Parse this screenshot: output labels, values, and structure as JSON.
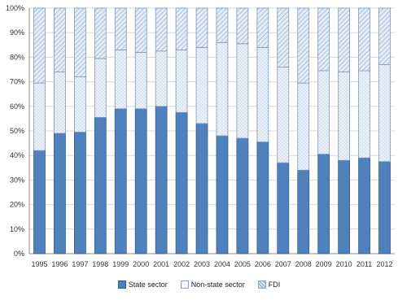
{
  "chart_data": {
    "type": "bar",
    "stacked": true,
    "percent_stacked": true,
    "title": "",
    "xlabel": "",
    "ylabel": "",
    "ylim": [
      0,
      100
    ],
    "ytick_labels": [
      "0%",
      "10%",
      "20%",
      "30%",
      "40%",
      "50%",
      "60%",
      "70%",
      "80%",
      "90%",
      "100%"
    ],
    "categories": [
      "1995",
      "1996",
      "1997",
      "1998",
      "1999",
      "2000",
      "2001",
      "2002",
      "2003",
      "2004",
      "2005",
      "2006",
      "2007",
      "2008",
      "2009",
      "2010",
      "2011",
      "2012"
    ],
    "series": [
      {
        "name": "State sector",
        "color": "#4f81bd",
        "values": [
          42,
          49,
          49.5,
          55.5,
          59,
          59,
          60,
          57.5,
          53,
          48,
          47,
          45.5,
          37,
          34,
          40.5,
          38,
          39,
          37.5
        ]
      },
      {
        "name": "Non-state sector",
        "color": "#e4ecf6",
        "values": [
          27.5,
          25,
          22.5,
          24,
          24,
          23,
          22.5,
          25.5,
          31,
          38,
          38.5,
          38.5,
          39,
          35.5,
          34,
          36,
          35.5,
          39.5
        ]
      },
      {
        "name": "FDI",
        "color": "#dbe5f1",
        "values": [
          30.5,
          26,
          28,
          20.5,
          17,
          18,
          17.5,
          17,
          16,
          14,
          14.5,
          16,
          24,
          30.5,
          25.5,
          26,
          25.5,
          23
        ]
      }
    ],
    "grid": true,
    "legend_position": "bottom"
  },
  "legend": {
    "state": "State sector",
    "nonstate": "Non-state sector",
    "fdi": "FDI"
  }
}
